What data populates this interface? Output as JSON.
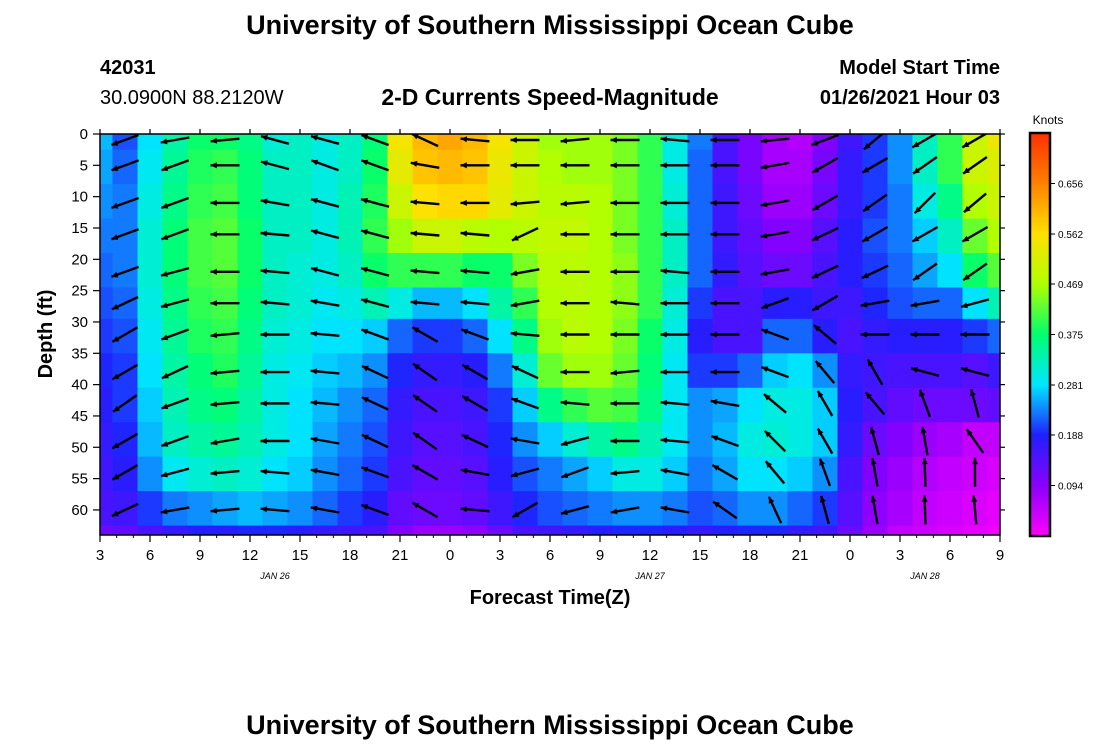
{
  "page": {
    "title_top": "University of Southern Mississippi Ocean Cube",
    "title_bottom": "University of Southern Mississippi Ocean Cube",
    "station_id": "42031",
    "station_coords": "30.0900N 88.2120W",
    "plot_title": "2-D Currents Speed-Magnitude",
    "model_start_label": "Model Start Time",
    "model_start_value": "01/26/2021 Hour 03"
  },
  "colors": {
    "colormap": [
      "#ff00ff",
      "#8a00ff",
      "#2020ff",
      "#00e6ff",
      "#00ff70",
      "#b0ff00",
      "#ffe000",
      "#ff8000",
      "#ff3000"
    ],
    "arrow": "#000000",
    "frame": "#000000"
  },
  "chart_data": {
    "type": "heatmap",
    "title": "2-D Currents Speed-Magnitude",
    "xlabel": "Forecast Time(Z)",
    "ylabel": "Depth (ft)",
    "colorbar_label": "Knots",
    "x_hours": [
      0,
      3,
      6,
      9,
      12,
      15,
      18,
      21,
      24,
      27,
      30,
      33,
      36,
      39,
      42,
      45,
      48,
      51,
      54
    ],
    "x_tick_labels": [
      "3",
      "6",
      "9",
      "12",
      "15",
      "18",
      "21",
      "0",
      "3",
      "6",
      "9",
      "12",
      "15",
      "18",
      "21",
      "0",
      "3",
      "6",
      "9"
    ],
    "date_labels": [
      {
        "label": "JAN 26",
        "hour": 10.5
      },
      {
        "label": "JAN 27",
        "hour": 33
      },
      {
        "label": "JAN 28",
        "hour": 49.5
      }
    ],
    "y_ticks": [
      0,
      5,
      10,
      15,
      20,
      25,
      30,
      35,
      40,
      45,
      50,
      55,
      60
    ],
    "y_range": [
      0,
      64
    ],
    "x_range": [
      0,
      54
    ],
    "colorbar_ticks": [
      "0.656",
      "0.562",
      "0.469",
      "0.375",
      "0.281",
      "0.188",
      "0.094"
    ],
    "colorbar_range": [
      0.0,
      0.75
    ],
    "depth_levels": [
      0,
      5,
      11,
      16,
      22,
      27,
      32,
      38,
      43,
      49,
      54,
      60,
      65
    ],
    "time_columns": [
      0,
      1.5,
      3,
      4.5,
      6,
      7.5,
      9,
      10.5,
      12,
      13.5,
      15,
      16.5,
      18,
      19.5,
      21,
      22.5,
      24,
      25.5,
      27,
      28.5,
      30,
      31.5,
      33,
      34.5,
      36,
      37.5,
      39,
      40.5,
      42,
      43.5,
      45,
      46.5,
      48,
      49.5,
      51,
      52.5,
      54
    ],
    "speed_knots": [
      [
        0.26,
        0.21,
        0.28,
        0.34,
        0.38,
        0.38,
        0.36,
        0.31,
        0.32,
        0.3,
        0.32,
        0.37,
        0.55,
        0.6,
        0.62,
        0.6,
        0.55,
        0.5,
        0.46,
        0.46,
        0.46,
        0.44,
        0.4,
        0.3,
        0.23,
        0.15,
        0.11,
        0.07,
        0.06,
        0.1,
        0.16,
        0.2,
        0.24,
        0.32,
        0.4,
        0.5,
        0.54
      ],
      [
        0.25,
        0.22,
        0.29,
        0.35,
        0.39,
        0.4,
        0.37,
        0.32,
        0.32,
        0.3,
        0.32,
        0.38,
        0.53,
        0.59,
        0.6,
        0.59,
        0.54,
        0.5,
        0.47,
        0.46,
        0.46,
        0.44,
        0.4,
        0.3,
        0.22,
        0.15,
        0.11,
        0.07,
        0.07,
        0.11,
        0.17,
        0.2,
        0.24,
        0.32,
        0.4,
        0.5,
        0.52
      ],
      [
        0.24,
        0.23,
        0.3,
        0.36,
        0.4,
        0.41,
        0.37,
        0.32,
        0.32,
        0.3,
        0.33,
        0.39,
        0.5,
        0.56,
        0.57,
        0.57,
        0.53,
        0.5,
        0.48,
        0.48,
        0.47,
        0.44,
        0.4,
        0.31,
        0.22,
        0.16,
        0.12,
        0.08,
        0.08,
        0.12,
        0.17,
        0.2,
        0.23,
        0.3,
        0.36,
        0.47,
        0.5
      ],
      [
        0.23,
        0.23,
        0.31,
        0.37,
        0.41,
        0.42,
        0.38,
        0.32,
        0.32,
        0.3,
        0.33,
        0.4,
        0.46,
        0.5,
        0.5,
        0.48,
        0.47,
        0.48,
        0.49,
        0.49,
        0.47,
        0.44,
        0.4,
        0.32,
        0.22,
        0.16,
        0.13,
        0.1,
        0.1,
        0.14,
        0.18,
        0.21,
        0.23,
        0.27,
        0.32,
        0.43,
        0.47
      ],
      [
        0.22,
        0.23,
        0.31,
        0.37,
        0.41,
        0.42,
        0.38,
        0.32,
        0.31,
        0.3,
        0.32,
        0.38,
        0.4,
        0.4,
        0.4,
        0.38,
        0.38,
        0.44,
        0.48,
        0.48,
        0.47,
        0.45,
        0.4,
        0.32,
        0.22,
        0.17,
        0.14,
        0.12,
        0.12,
        0.15,
        0.18,
        0.2,
        0.22,
        0.25,
        0.28,
        0.38,
        0.42
      ],
      [
        0.21,
        0.22,
        0.3,
        0.36,
        0.4,
        0.41,
        0.37,
        0.32,
        0.31,
        0.29,
        0.3,
        0.33,
        0.3,
        0.26,
        0.26,
        0.28,
        0.34,
        0.4,
        0.47,
        0.48,
        0.47,
        0.45,
        0.4,
        0.31,
        0.2,
        0.15,
        0.15,
        0.18,
        0.18,
        0.16,
        0.16,
        0.19,
        0.21,
        0.22,
        0.22,
        0.28,
        0.33
      ],
      [
        0.2,
        0.21,
        0.29,
        0.35,
        0.39,
        0.4,
        0.36,
        0.31,
        0.3,
        0.28,
        0.28,
        0.27,
        0.22,
        0.2,
        0.2,
        0.22,
        0.28,
        0.36,
        0.46,
        0.48,
        0.47,
        0.44,
        0.38,
        0.3,
        0.18,
        0.15,
        0.15,
        0.22,
        0.22,
        0.18,
        0.15,
        0.17,
        0.18,
        0.18,
        0.18,
        0.2,
        0.22
      ],
      [
        0.19,
        0.2,
        0.28,
        0.34,
        0.37,
        0.39,
        0.35,
        0.3,
        0.29,
        0.27,
        0.26,
        0.24,
        0.19,
        0.17,
        0.17,
        0.18,
        0.23,
        0.31,
        0.43,
        0.46,
        0.46,
        0.43,
        0.37,
        0.29,
        0.2,
        0.2,
        0.22,
        0.27,
        0.28,
        0.24,
        0.17,
        0.16,
        0.15,
        0.15,
        0.15,
        0.14,
        0.16
      ],
      [
        0.18,
        0.2,
        0.27,
        0.33,
        0.36,
        0.37,
        0.34,
        0.3,
        0.28,
        0.26,
        0.24,
        0.22,
        0.17,
        0.15,
        0.15,
        0.16,
        0.2,
        0.27,
        0.36,
        0.4,
        0.42,
        0.41,
        0.36,
        0.29,
        0.24,
        0.25,
        0.28,
        0.3,
        0.3,
        0.27,
        0.18,
        0.15,
        0.13,
        0.12,
        0.12,
        0.12,
        0.13
      ],
      [
        0.17,
        0.19,
        0.26,
        0.32,
        0.34,
        0.35,
        0.33,
        0.3,
        0.28,
        0.25,
        0.23,
        0.21,
        0.16,
        0.14,
        0.14,
        0.15,
        0.19,
        0.24,
        0.27,
        0.31,
        0.34,
        0.36,
        0.33,
        0.29,
        0.24,
        0.26,
        0.3,
        0.31,
        0.3,
        0.27,
        0.17,
        0.12,
        0.1,
        0.08,
        0.07,
        0.05,
        0.05
      ],
      [
        0.16,
        0.18,
        0.24,
        0.29,
        0.31,
        0.32,
        0.31,
        0.28,
        0.27,
        0.24,
        0.22,
        0.2,
        0.15,
        0.13,
        0.13,
        0.14,
        0.18,
        0.21,
        0.23,
        0.25,
        0.27,
        0.3,
        0.3,
        0.27,
        0.23,
        0.25,
        0.28,
        0.28,
        0.27,
        0.24,
        0.15,
        0.1,
        0.08,
        0.06,
        0.05,
        0.04,
        0.03
      ],
      [
        0.15,
        0.16,
        0.2,
        0.23,
        0.24,
        0.25,
        0.26,
        0.25,
        0.24,
        0.22,
        0.2,
        0.18,
        0.13,
        0.12,
        0.12,
        0.13,
        0.16,
        0.19,
        0.21,
        0.22,
        0.23,
        0.24,
        0.24,
        0.23,
        0.21,
        0.22,
        0.24,
        0.24,
        0.22,
        0.2,
        0.14,
        0.09,
        0.07,
        0.05,
        0.04,
        0.03,
        0.02
      ],
      [
        0.12,
        0.13,
        0.15,
        0.17,
        0.18,
        0.18,
        0.19,
        0.19,
        0.18,
        0.17,
        0.16,
        0.15,
        0.1,
        0.08,
        0.08,
        0.09,
        0.12,
        0.15,
        0.16,
        0.17,
        0.18,
        0.19,
        0.19,
        0.18,
        0.17,
        0.18,
        0.19,
        0.19,
        0.17,
        0.16,
        0.12,
        0.08,
        0.05,
        0.04,
        0.03,
        0.02,
        0.01
      ]
    ],
    "arrow_times": [
      1.5,
      4.5,
      7.5,
      10.5,
      13.5,
      16.5,
      19.5,
      22.5,
      25.5,
      28.5,
      31.5,
      34.5,
      37.5,
      40.5,
      43.5,
      46.5,
      49.5,
      52.5
    ],
    "arrow_depths": [
      0,
      5,
      11,
      16,
      22,
      27,
      32,
      38,
      43,
      49,
      54,
      60
    ],
    "arrow_direction_deg": [
      [
        200,
        190,
        185,
        165,
        165,
        160,
        155,
        175,
        180,
        185,
        180,
        175,
        180,
        185,
        200,
        220,
        210,
        210
      ],
      [
        200,
        200,
        180,
        165,
        160,
        160,
        170,
        180,
        180,
        180,
        180,
        180,
        180,
        190,
        210,
        210,
        215,
        215
      ],
      [
        200,
        200,
        180,
        170,
        165,
        165,
        175,
        180,
        185,
        185,
        180,
        180,
        180,
        190,
        210,
        215,
        225,
        220
      ],
      [
        200,
        200,
        180,
        175,
        165,
        165,
        175,
        175,
        205,
        180,
        180,
        180,
        180,
        190,
        205,
        210,
        210,
        210
      ],
      [
        200,
        195,
        180,
        175,
        165,
        165,
        175,
        175,
        190,
        180,
        180,
        175,
        180,
        190,
        205,
        205,
        215,
        215
      ],
      [
        205,
        195,
        180,
        175,
        170,
        165,
        175,
        175,
        190,
        180,
        175,
        180,
        180,
        200,
        210,
        190,
        190,
        195
      ],
      [
        210,
        200,
        185,
        180,
        175,
        160,
        150,
        160,
        175,
        180,
        180,
        180,
        180,
        160,
        140,
        180,
        180,
        180
      ],
      [
        210,
        205,
        185,
        180,
        175,
        155,
        145,
        150,
        155,
        180,
        185,
        180,
        180,
        160,
        130,
        120,
        165,
        165
      ],
      [
        215,
        200,
        185,
        180,
        175,
        155,
        145,
        150,
        160,
        175,
        180,
        175,
        170,
        140,
        120,
        130,
        110,
        105
      ],
      [
        210,
        200,
        190,
        180,
        170,
        155,
        145,
        155,
        170,
        195,
        180,
        175,
        160,
        135,
        120,
        105,
        100,
        125
      ],
      [
        210,
        195,
        185,
        175,
        170,
        160,
        150,
        170,
        195,
        200,
        185,
        170,
        150,
        130,
        110,
        100,
        92,
        90
      ],
      [
        205,
        190,
        185,
        175,
        170,
        160,
        150,
        175,
        210,
        195,
        190,
        170,
        145,
        115,
        105,
        100,
        92,
        95
      ]
    ]
  }
}
